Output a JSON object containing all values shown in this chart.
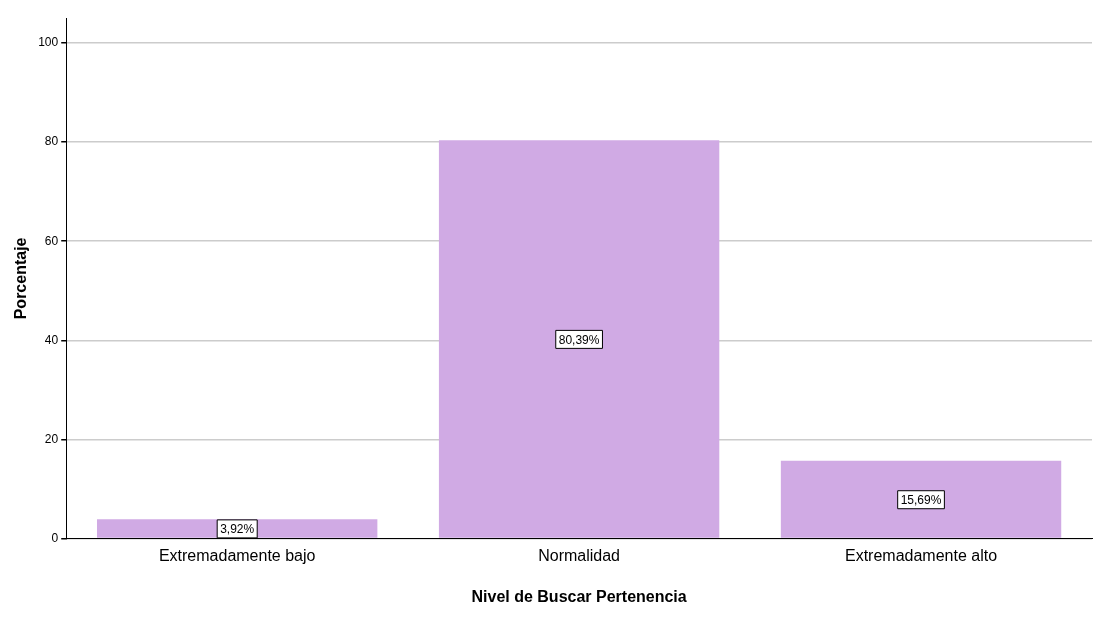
{
  "chart_data": {
    "type": "bar",
    "xlabel": "Nivel de Buscar Pertenencia",
    "ylabel": "Porcentaje",
    "categories": [
      "Extremadamente bajo",
      "Normalidad",
      "Extremadamente alto"
    ],
    "values": [
      3.92,
      80.39,
      15.69
    ],
    "color": "#d0aae4",
    "value_labels": [
      "3,92%",
      "80,39%",
      "15,69%"
    ],
    "ylim": [
      0,
      105
    ],
    "yticks": [
      0,
      20,
      40,
      60,
      80,
      100
    ],
    "grid": "y",
    "legend": false
  }
}
